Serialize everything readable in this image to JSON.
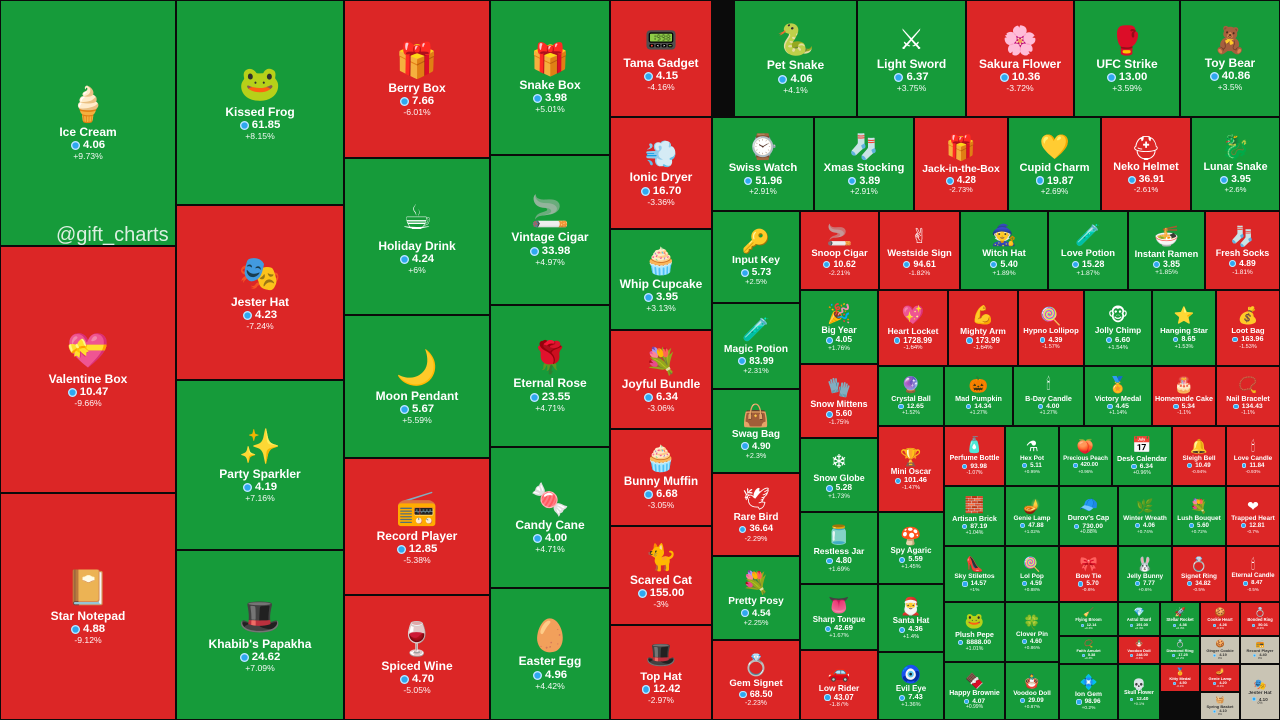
{
  "watermark": "@gift_charts",
  "colors": {
    "up": "#169b3a",
    "down": "#dc2626",
    "flat": "#c9c4b4"
  },
  "chart_data": {
    "type": "treemap",
    "currency_icon": "diamond-gem-icon",
    "items": [
      {
        "name": "Ice Cream",
        "price": "4.06",
        "change": "+9.73%",
        "icon": "ice-cream-icon"
      },
      {
        "name": "Valentine Box",
        "price": "10.47",
        "change": "-9.66%",
        "icon": "valentine-box-icon"
      },
      {
        "name": "Star Notepad",
        "price": "4.88",
        "change": "-9.12%",
        "icon": "notepad-icon"
      },
      {
        "name": "Kissed Frog",
        "price": "61.85",
        "change": "+8.15%",
        "icon": "frog-icon"
      },
      {
        "name": "Jester Hat",
        "price": "4.23",
        "change": "-7.24%",
        "icon": "jester-hat-icon"
      },
      {
        "name": "Party Sparkler",
        "price": "4.19",
        "change": "+7.16%",
        "icon": "sparkler-icon"
      },
      {
        "name": "Khabib's Papakha",
        "price": "24.62",
        "change": "+7.09%",
        "icon": "papakha-icon"
      },
      {
        "name": "Berry Box",
        "price": "7.66",
        "change": "-6.01%",
        "icon": "berry-box-icon"
      },
      {
        "name": "Holiday Drink",
        "price": "4.24",
        "change": "+6%",
        "icon": "holiday-drink-icon"
      },
      {
        "name": "Moon Pendant",
        "price": "5.67",
        "change": "+5.59%",
        "icon": "moon-pendant-icon"
      },
      {
        "name": "Record Player",
        "price": "12.85",
        "change": "-5.38%",
        "icon": "record-player-icon"
      },
      {
        "name": "Spiced Wine",
        "price": "4.70",
        "change": "-5.05%",
        "icon": "spiced-wine-icon"
      },
      {
        "name": "Snake Box",
        "price": "3.98",
        "change": "+5.01%",
        "icon": "snake-box-icon"
      },
      {
        "name": "Vintage Cigar",
        "price": "33.98",
        "change": "+4.97%",
        "icon": "cigar-icon"
      },
      {
        "name": "Eternal Rose",
        "price": "23.55",
        "change": "+4.71%",
        "icon": "rose-icon"
      },
      {
        "name": "Candy Cane",
        "price": "4.00",
        "change": "+4.71%",
        "icon": "candy-cane-icon"
      },
      {
        "name": "Easter Egg",
        "price": "4.96",
        "change": "+4.42%",
        "icon": "easter-egg-icon"
      },
      {
        "name": "Tama Gadget",
        "price": "4.15",
        "change": "-4.16%",
        "icon": "tama-gadget-icon"
      },
      {
        "name": "Ionic Dryer",
        "price": "16.70",
        "change": "-3.36%",
        "icon": "hair-dryer-icon"
      },
      {
        "name": "Whip Cupcake",
        "price": "3.95",
        "change": "+3.13%",
        "icon": "cupcake-icon"
      },
      {
        "name": "Joyful Bundle",
        "price": "6.34",
        "change": "-3.06%",
        "icon": "bundle-icon"
      },
      {
        "name": "Bunny Muffin",
        "price": "6.68",
        "change": "-3.05%",
        "icon": "muffin-icon"
      },
      {
        "name": "Scared Cat",
        "price": "155.00",
        "change": "-3%",
        "icon": "cat-icon"
      },
      {
        "name": "Top Hat",
        "price": "12.42",
        "change": "-2.97%",
        "icon": "top-hat-icon"
      },
      {
        "name": "Pet Snake",
        "price": "4.06",
        "change": "+4.1%",
        "icon": "snake-icon"
      },
      {
        "name": "Light Sword",
        "price": "6.37",
        "change": "+3.75%",
        "icon": "light-sword-icon"
      },
      {
        "name": "Sakura Flower",
        "price": "10.36",
        "change": "-3.72%",
        "icon": "sakura-icon"
      },
      {
        "name": "UFC Strike",
        "price": "13.00",
        "change": "+3.59%",
        "icon": "ufc-glove-icon"
      },
      {
        "name": "Toy Bear",
        "price": "40.86",
        "change": "+3.5%",
        "icon": "teddy-bear-icon"
      },
      {
        "name": "Swiss Watch",
        "price": "51.96",
        "change": "+2.91%",
        "icon": "watch-icon"
      },
      {
        "name": "Xmas Stocking",
        "price": "3.89",
        "change": "+2.91%",
        "icon": "stocking-icon"
      },
      {
        "name": "Jack-in-the-Box",
        "price": "4.28",
        "change": "-2.73%",
        "icon": "jack-in-box-icon"
      },
      {
        "name": "Cupid Charm",
        "price": "19.87",
        "change": "+2.69%",
        "icon": "cupid-charm-icon"
      },
      {
        "name": "Neko Helmet",
        "price": "36.91",
        "change": "-2.61%",
        "icon": "helmet-icon"
      },
      {
        "name": "Lunar Snake",
        "price": "3.95",
        "change": "+2.6%",
        "icon": "lunar-snake-icon"
      },
      {
        "name": "Input Key",
        "price": "5.73",
        "change": "+2.5%",
        "icon": "key-icon"
      },
      {
        "name": "Magic Potion",
        "price": "83.99",
        "change": "+2.31%",
        "icon": "potion-icon"
      },
      {
        "name": "Swag Bag",
        "price": "4.90",
        "change": "+2.3%",
        "icon": "bag-icon"
      },
      {
        "name": "Rare Bird",
        "price": "36.64",
        "change": "-2.29%",
        "icon": "bird-icon"
      },
      {
        "name": "Pretty Posy",
        "price": "4.54",
        "change": "+2.25%",
        "icon": "posy-icon"
      },
      {
        "name": "Gem Signet",
        "price": "68.50",
        "change": "-2.23%",
        "icon": "ring-icon"
      },
      {
        "name": "Snoop Cigar",
        "price": "10.62",
        "change": "-2.21%",
        "icon": "cigar-icon"
      },
      {
        "name": "Westside Sign",
        "price": "94.61",
        "change": "-1.82%",
        "icon": "hand-sign-icon"
      },
      {
        "name": "Witch Hat",
        "price": "5.40",
        "change": "+1.89%",
        "icon": "witch-hat-icon"
      },
      {
        "name": "Love Potion",
        "price": "15.28",
        "change": "+1.87%",
        "icon": "potion-icon"
      },
      {
        "name": "Instant Ramen",
        "price": "3.85",
        "change": "+1.85%",
        "icon": "ramen-icon"
      },
      {
        "name": "Fresh Socks",
        "price": "4.89",
        "change": "-1.81%",
        "icon": "socks-icon"
      },
      {
        "name": "Big Year",
        "price": "4.05",
        "change": "+1.76%",
        "icon": "big-year-icon"
      },
      {
        "name": "Heart Locket",
        "price": "1728.99",
        "change": "-1.64%",
        "icon": "locket-icon"
      },
      {
        "name": "Mighty Arm",
        "price": "173.99",
        "change": "-1.64%",
        "icon": "arm-icon"
      },
      {
        "name": "Hypno Lollipop",
        "price": "4.39",
        "change": "-1.57%",
        "icon": "lollipop-icon"
      },
      {
        "name": "Jolly Chimp",
        "price": "6.60",
        "change": "+1.54%",
        "icon": "chimp-icon"
      },
      {
        "name": "Hanging Star",
        "price": "8.65",
        "change": "+1.53%",
        "icon": "star-icon"
      },
      {
        "name": "Loot Bag",
        "price": "163.96",
        "change": "-1.53%",
        "icon": "loot-bag-icon"
      },
      {
        "name": "Snow Mittens",
        "price": "5.60",
        "change": "-1.75%",
        "icon": "mittens-icon"
      },
      {
        "name": "Crystal Ball",
        "price": "12.65",
        "change": "+1.52%",
        "icon": "crystal-ball-icon"
      },
      {
        "name": "Mad Pumpkin",
        "price": "14.34",
        "change": "+1.27%",
        "icon": "pumpkin-icon"
      },
      {
        "name": "B-Day Candle",
        "price": "4.00",
        "change": "+1.27%",
        "icon": "candle-icon"
      },
      {
        "name": "Victory Medal",
        "price": "4.45",
        "change": "+1.14%",
        "icon": "medal-icon"
      },
      {
        "name": "Homemade Cake",
        "price": "5.34",
        "change": "-1.1%",
        "icon": "cake-icon"
      },
      {
        "name": "Nail Bracelet",
        "price": "134.43",
        "change": "-1.1%",
        "icon": "bracelet-icon"
      },
      {
        "name": "Snow Globe",
        "price": "5.28",
        "change": "+1.73%",
        "icon": "snow-globe-icon"
      },
      {
        "name": "Mini Oscar",
        "price": "101.46",
        "change": "-1.47%",
        "icon": "oscar-icon"
      },
      {
        "name": "Perfume Bottle",
        "price": "93.98",
        "change": "-1.07%",
        "icon": "perfume-icon"
      },
      {
        "name": "Hex Pot",
        "price": "5.11",
        "change": "+0.99%",
        "icon": "hex-pot-icon"
      },
      {
        "name": "Precious Peach",
        "price": "420.00",
        "change": "+0.96%",
        "icon": "peach-icon"
      },
      {
        "name": "Desk Calendar",
        "price": "6.34",
        "change": "+0.96%",
        "icon": "calendar-icon"
      },
      {
        "name": "Sleigh Bell",
        "price": "10.49",
        "change": "-0.94%",
        "icon": "bell-icon"
      },
      {
        "name": "Love Candle",
        "price": "11.84",
        "change": "-0.93%",
        "icon": "candle-icon"
      },
      {
        "name": "Restless Jar",
        "price": "4.80",
        "change": "+1.69%",
        "icon": "jar-icon"
      },
      {
        "name": "Spy Agaric",
        "price": "5.59",
        "change": "+1.45%",
        "icon": "mushroom-icon"
      },
      {
        "name": "Artisan Brick",
        "price": "87.19",
        "change": "+1.04%",
        "icon": "brick-icon"
      },
      {
        "name": "Genie Lamp",
        "price": "47.88",
        "change": "+1.02%",
        "icon": "lamp-icon"
      },
      {
        "name": "Durov's Cap",
        "price": "730.00",
        "change": "+0.88%",
        "icon": "cap-icon"
      },
      {
        "name": "Winter Wreath",
        "price": "4.06",
        "change": "+0.74%",
        "icon": "wreath-icon"
      },
      {
        "name": "Lush Bouquet",
        "price": "5.60",
        "change": "+0.72%",
        "icon": "bouquet-icon"
      },
      {
        "name": "Trapped Heart",
        "price": "12.81",
        "change": "-0.7%",
        "icon": "heart-icon"
      },
      {
        "name": "Sharp Tongue",
        "price": "42.69",
        "change": "+1.67%",
        "icon": "tongue-icon"
      },
      {
        "name": "Santa Hat",
        "price": "4.36",
        "change": "+1.4%",
        "icon": "santa-hat-icon"
      },
      {
        "name": "Sky Stilettos",
        "price": "14.57",
        "change": "+1%",
        "icon": "stiletto-icon"
      },
      {
        "name": "Lol Pop",
        "price": "4.59",
        "change": "+0.88%",
        "icon": "lollipop-icon"
      },
      {
        "name": "Bow Tie",
        "price": "5.70",
        "change": "-0.6%",
        "icon": "bow-tie-icon"
      },
      {
        "name": "Jelly Bunny",
        "price": "7.77",
        "change": "+0.6%",
        "icon": "bunny-icon"
      },
      {
        "name": "Signet Ring",
        "price": "34.82",
        "change": "-0.5%",
        "icon": "ring-icon"
      },
      {
        "name": "Eternal Candle",
        "price": "8.47",
        "change": "-0.5%",
        "icon": "candle-icon"
      },
      {
        "name": "Flying Broom",
        "price": "12.14",
        "change": "+0.4%",
        "icon": "broom-icon"
      },
      {
        "name": "Astral Shard",
        "price": "191.00",
        "change": "+0.4%",
        "icon": "shard-icon"
      },
      {
        "name": "Stellar Rocket",
        "price": "4.36",
        "change": "+0.3%",
        "icon": "rocket-icon"
      },
      {
        "name": "Cookie Heart",
        "price": "4.26",
        "change": "-0.3%",
        "icon": "cookie-icon"
      },
      {
        "name": "Bonded Ring",
        "price": "50.01",
        "change": "-0.2%",
        "icon": "ring-icon"
      },
      {
        "name": "Low Rider",
        "price": "43.07",
        "change": "-1.87%",
        "icon": "car-icon"
      },
      {
        "name": "Evil Eye",
        "price": "7.43",
        "change": "+1.36%",
        "icon": "evil-eye-icon"
      },
      {
        "name": "Plush Pepe",
        "price": "8888.00",
        "change": "+1.01%",
        "icon": "pepe-icon"
      },
      {
        "name": "Clover Pin",
        "price": "4.60",
        "change": "+0.86%",
        "icon": "clover-icon"
      },
      {
        "name": "Faith Amulet",
        "price": "5.38",
        "change": "+0.3%",
        "icon": "amulet-icon"
      },
      {
        "name": "Voodoo Doll",
        "price": "248.00",
        "change": "-0.3%",
        "icon": "doll-icon"
      },
      {
        "name": "Diamond Ring",
        "price": "17.25",
        "change": "+0.2%",
        "icon": "diamond-ring-icon"
      },
      {
        "name": "Ginger Cookie",
        "price": "4.19",
        "change": "0%",
        "icon": "cookie-icon"
      },
      {
        "name": "Record Player",
        "price": "4.40",
        "change": "0%",
        "icon": "record-player-icon"
      },
      {
        "name": "Happy Brownie",
        "price": "4.07",
        "change": "+0.99%",
        "icon": "brownie-icon"
      },
      {
        "name": "Voodoo Doll",
        "price": "29.09",
        "change": "+0.87%",
        "icon": "doll-icon"
      },
      {
        "name": "Ion Gem",
        "price": "98.96",
        "change": "+0.2%",
        "icon": "ion-gem-icon"
      },
      {
        "name": "Skull Flower",
        "price": "12.40",
        "change": "+0.1%",
        "icon": "skull-flower-icon"
      },
      {
        "name": "Kitty Medal",
        "price": "4.50",
        "change": "-0.1%",
        "icon": "medal-icon"
      },
      {
        "name": "Genie Lamp",
        "price": "4.20",
        "change": "-0.1%",
        "icon": "lamp-icon"
      },
      {
        "name": "Spring Basket",
        "price": "4.10",
        "change": "0%",
        "icon": "basket-icon"
      },
      {
        "name": "Jester Hat",
        "price": "4.10",
        "change": "0%",
        "icon": "jester-hat-icon"
      }
    ]
  }
}
